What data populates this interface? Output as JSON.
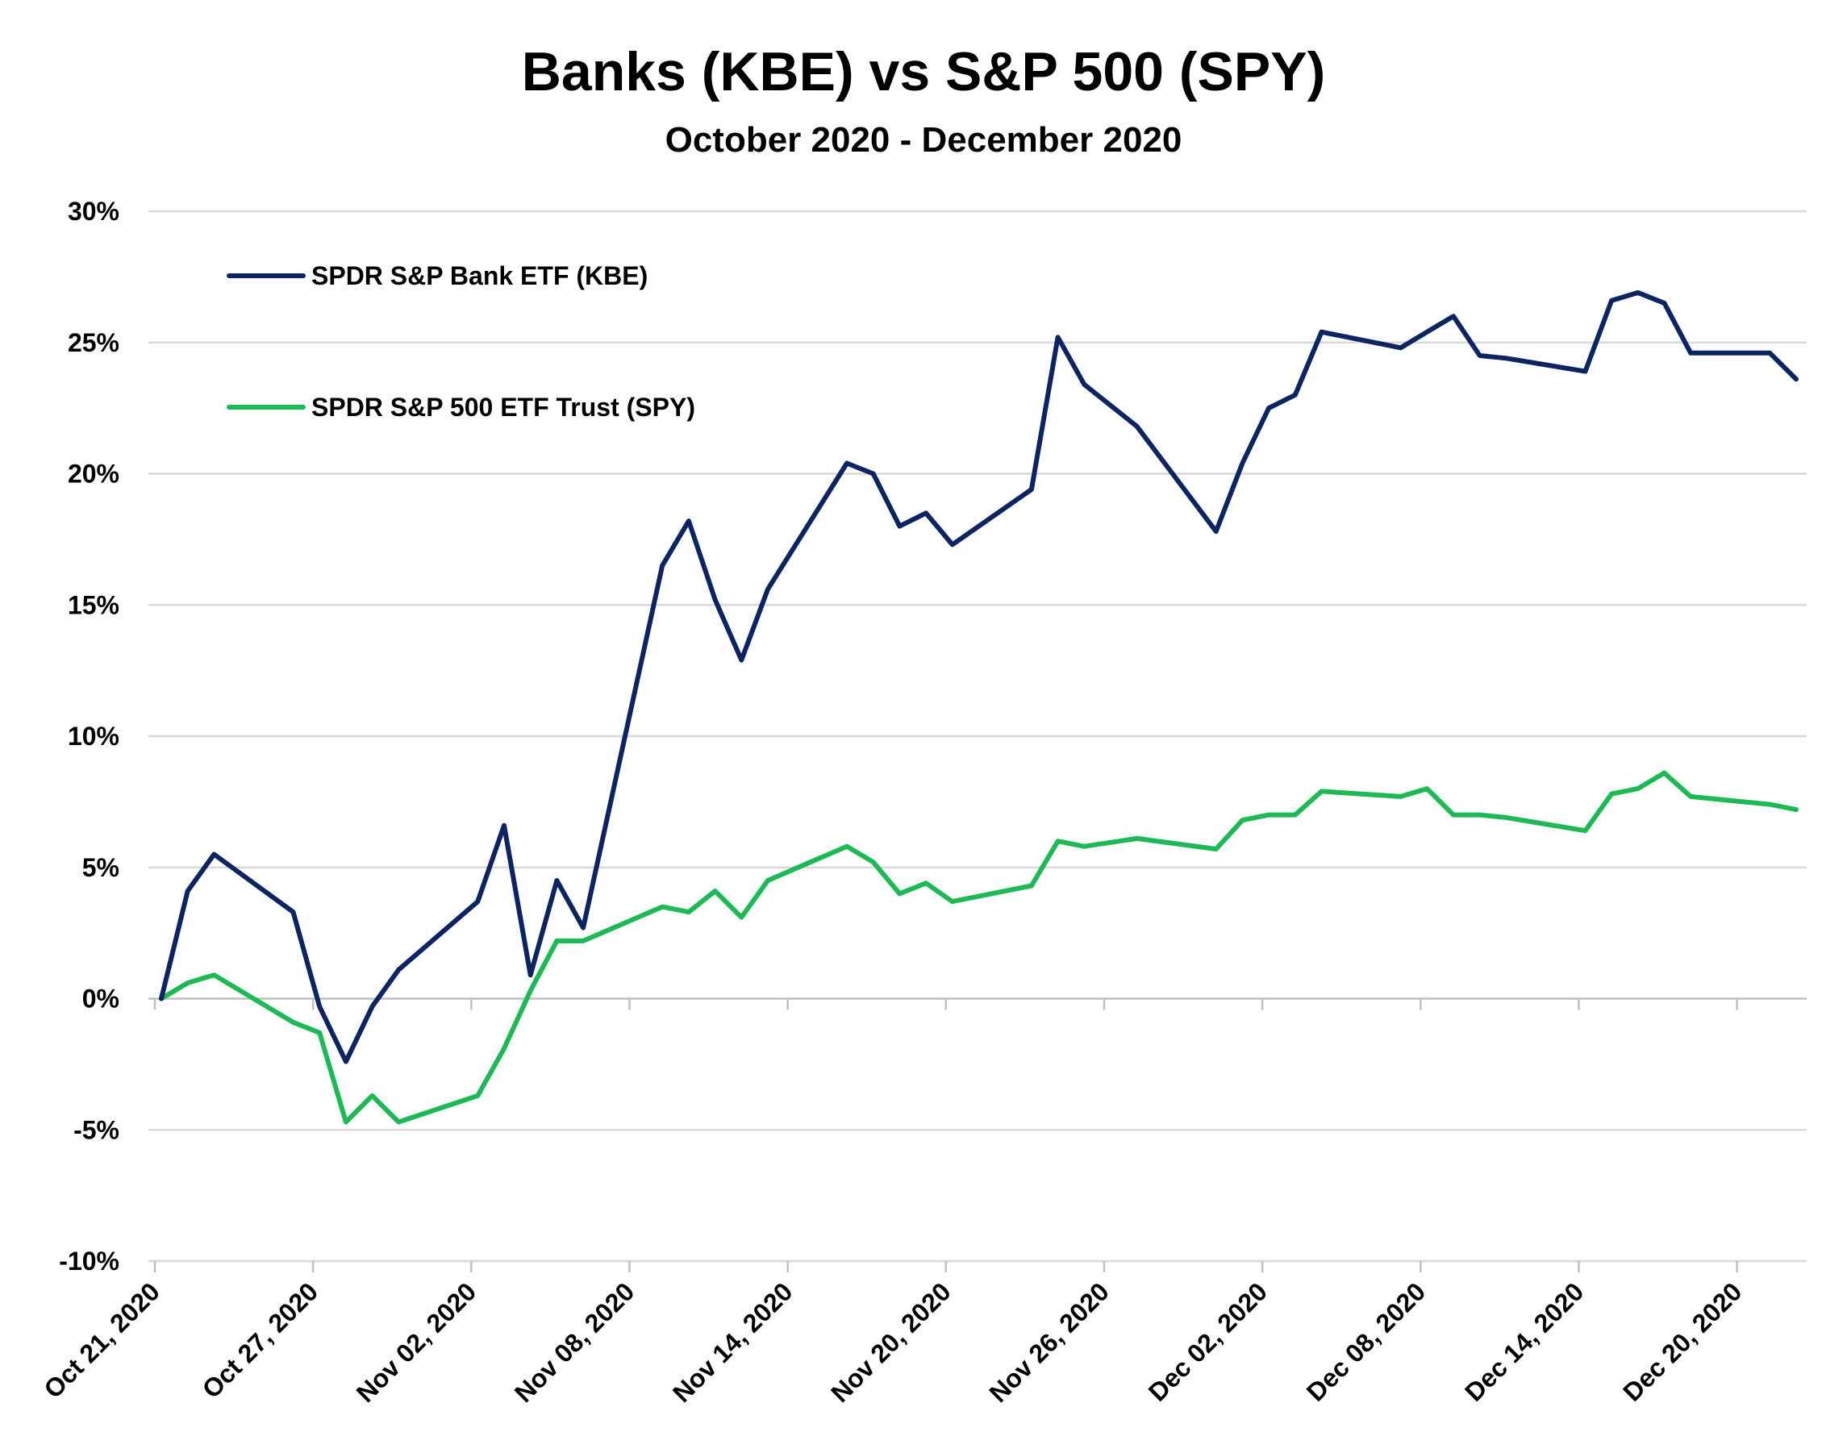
{
  "chart_data": {
    "type": "line",
    "title": "Banks (KBE) vs S&P 500 (SPY)",
    "subtitle": "October 2020 - December 2020",
    "xlabel": "",
    "ylabel": "",
    "ylim": [
      -10,
      30
    ],
    "y_ticks": [
      -10,
      -5,
      0,
      5,
      10,
      15,
      20,
      25,
      30
    ],
    "y_tick_format": "percent",
    "xlim": [
      "2020-10-21",
      "2020-12-22"
    ],
    "x_tick_labels": [
      "Oct 21, 2020",
      "Oct 27, 2020",
      "Nov 02, 2020",
      "Nov 08, 2020",
      "Nov 14, 2020",
      "Nov 20, 2020",
      "Nov 26, 2020",
      "Dec 02, 2020",
      "Dec 08, 2020",
      "Dec 14, 2020",
      "Dec 20, 2020"
    ],
    "x_tick_dates": [
      "2020-10-21",
      "2020-10-27",
      "2020-11-02",
      "2020-11-08",
      "2020-11-14",
      "2020-11-20",
      "2020-11-26",
      "2020-12-02",
      "2020-12-08",
      "2020-12-14",
      "2020-12-20"
    ],
    "grid": true,
    "legend_position": "top-left",
    "x": [
      "2020-10-21",
      "2020-10-22",
      "2020-10-23",
      "2020-10-26",
      "2020-10-27",
      "2020-10-28",
      "2020-10-29",
      "2020-10-30",
      "2020-11-02",
      "2020-11-03",
      "2020-11-04",
      "2020-11-05",
      "2020-11-06",
      "2020-11-09",
      "2020-11-10",
      "2020-11-11",
      "2020-11-12",
      "2020-11-13",
      "2020-11-16",
      "2020-11-17",
      "2020-11-18",
      "2020-11-19",
      "2020-11-20",
      "2020-11-23",
      "2020-11-24",
      "2020-11-25",
      "2020-11-27",
      "2020-11-30",
      "2020-12-01",
      "2020-12-02",
      "2020-12-03",
      "2020-12-04",
      "2020-12-07",
      "2020-12-08",
      "2020-12-09",
      "2020-12-10",
      "2020-12-11",
      "2020-12-14",
      "2020-12-15",
      "2020-12-16",
      "2020-12-17",
      "2020-12-18",
      "2020-12-21",
      "2020-12-22"
    ],
    "series": [
      {
        "name": "SPDR S&P Bank ETF (KBE)",
        "color": "#0c2461",
        "values": [
          0.0,
          4.1,
          5.5,
          3.3,
          -0.3,
          -2.4,
          -0.3,
          1.1,
          3.7,
          6.6,
          0.9,
          4.5,
          2.7,
          16.5,
          18.2,
          15.2,
          12.9,
          15.6,
          20.4,
          20.0,
          18.0,
          18.5,
          17.3,
          19.4,
          25.2,
          23.4,
          21.8,
          17.8,
          20.4,
          22.5,
          23.0,
          25.4,
          24.8,
          25.4,
          26.0,
          24.5,
          24.4,
          23.9,
          26.6,
          26.9,
          26.5,
          24.6,
          24.6,
          23.6
        ]
      },
      {
        "name": "SPDR S&P 500 ETF Trust (SPY)",
        "color": "#1db954",
        "values": [
          0.0,
          0.6,
          0.9,
          -0.9,
          -1.3,
          -4.7,
          -3.7,
          -4.7,
          -3.7,
          -1.9,
          0.3,
          2.2,
          2.2,
          3.5,
          3.3,
          4.1,
          3.1,
          4.5,
          5.8,
          5.2,
          4.0,
          4.4,
          3.7,
          4.3,
          6.0,
          5.8,
          6.1,
          5.7,
          6.8,
          7.0,
          7.0,
          7.9,
          7.7,
          8.0,
          7.0,
          7.0,
          6.9,
          6.4,
          7.8,
          8.0,
          8.6,
          7.7,
          7.4,
          7.2
        ]
      }
    ]
  }
}
